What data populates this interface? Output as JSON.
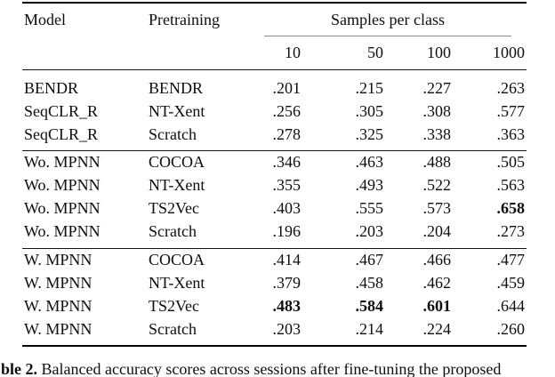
{
  "table": {
    "headers": {
      "model": "Model",
      "pretraining": "Pretraining",
      "group": "Samples per class",
      "cols": [
        "10",
        "50",
        "100",
        "1000"
      ]
    },
    "sections": [
      {
        "rows": [
          {
            "model": "BENDR",
            "pretraining": "BENDR",
            "values": [
              ".201",
              ".215",
              ".227",
              ".263"
            ],
            "bold": [
              false,
              false,
              false,
              false
            ]
          },
          {
            "model": "SeqCLR_R",
            "pretraining": "NT-Xent",
            "values": [
              ".256",
              ".305",
              ".308",
              ".577"
            ],
            "bold": [
              false,
              false,
              false,
              false
            ]
          },
          {
            "model": "SeqCLR_R",
            "pretraining": "Scratch",
            "values": [
              ".278",
              ".325",
              ".338",
              ".363"
            ],
            "bold": [
              false,
              false,
              false,
              false
            ]
          }
        ]
      },
      {
        "rows": [
          {
            "model": "Wo. MPNN",
            "pretraining": "COCOA",
            "values": [
              ".346",
              ".463",
              ".488",
              ".505"
            ],
            "bold": [
              false,
              false,
              false,
              false
            ]
          },
          {
            "model": "Wo. MPNN",
            "pretraining": "NT-Xent",
            "values": [
              ".355",
              ".493",
              ".522",
              ".563"
            ],
            "bold": [
              false,
              false,
              false,
              false
            ]
          },
          {
            "model": "Wo. MPNN",
            "pretraining": "TS2Vec",
            "values": [
              ".403",
              ".555",
              ".573",
              ".658"
            ],
            "bold": [
              false,
              false,
              false,
              true
            ]
          },
          {
            "model": "Wo. MPNN",
            "pretraining": "Scratch",
            "values": [
              ".196",
              ".203",
              ".204",
              ".273"
            ],
            "bold": [
              false,
              false,
              false,
              false
            ]
          }
        ]
      },
      {
        "rows": [
          {
            "model": "W. MPNN",
            "pretraining": "COCOA",
            "values": [
              ".414",
              ".467",
              ".466",
              ".477"
            ],
            "bold": [
              false,
              false,
              false,
              false
            ]
          },
          {
            "model": "W. MPNN",
            "pretraining": "NT-Xent",
            "values": [
              ".379",
              ".458",
              ".462",
              ".459"
            ],
            "bold": [
              false,
              false,
              false,
              false
            ]
          },
          {
            "model": "W. MPNN",
            "pretraining": "TS2Vec",
            "values": [
              ".483",
              ".584",
              ".601",
              ".644"
            ],
            "bold": [
              true,
              true,
              true,
              false
            ]
          },
          {
            "model": "W. MPNN",
            "pretraining": "Scratch",
            "values": [
              ".203",
              ".214",
              ".224",
              ".260"
            ],
            "bold": [
              false,
              false,
              false,
              false
            ]
          }
        ]
      }
    ]
  },
  "caption": {
    "label": "ble 2.",
    "text": "Balanced accuracy scores across sessions after fine-tuning the proposed"
  },
  "colors": {
    "background": "#ffffff",
    "text": "#0e0e0e",
    "rule_heavy": "#000000",
    "rule_mid": "#151515",
    "rule_light": "#8a8a8a"
  }
}
